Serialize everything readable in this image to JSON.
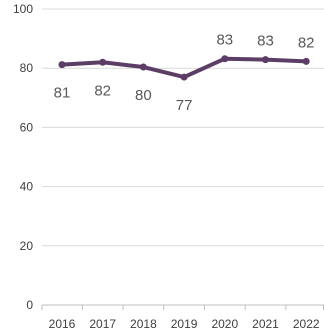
{
  "chart_data": {
    "type": "line",
    "title": "",
    "xlabel": "",
    "ylabel": "",
    "categories": [
      "2016",
      "2017",
      "2018",
      "2019",
      "2020",
      "2021",
      "2022"
    ],
    "series": [
      {
        "values": [
          81,
          82,
          80,
          77,
          83,
          83,
          82
        ],
        "plotted": [
          81.2,
          82.0,
          80.4,
          77.0,
          83.2,
          82.9,
          82.3
        ],
        "labels": [
          "81",
          "82",
          "80",
          "77",
          "83",
          "83",
          "82"
        ],
        "color": "#5b3d66"
      }
    ],
    "ylim": [
      0,
      100
    ],
    "yticks": [
      "0",
      "20",
      "40",
      "60",
      "80",
      "100"
    ],
    "grid": true,
    "legend": "none"
  }
}
